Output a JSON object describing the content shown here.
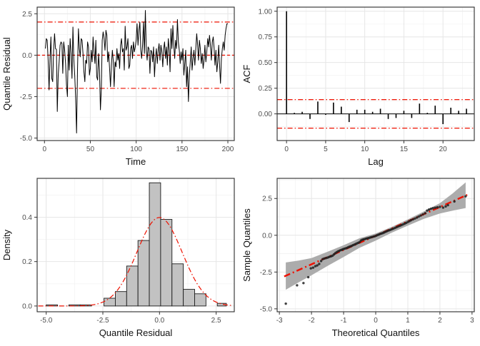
{
  "colors": {
    "accent_red": "#EE1100",
    "series": "#000000",
    "grid_major": "#E6E6E6",
    "grid_minor": "#F3F3F3",
    "panel_border": "#2B2B2B",
    "hist_fill": "#C2C2C2",
    "band_fill": "#ACACAC",
    "point": "#1F1F1F",
    "tick_text": "#4D4D4D",
    "title_text": "#111111"
  },
  "chart_data": [
    {
      "type": "line",
      "variant": "time-series",
      "title": "",
      "xlabel": "Time",
      "ylabel": "Quantile Residual",
      "xlim": [
        -8,
        207
      ],
      "ylim": [
        -5.15,
        2.9
      ],
      "xticks": [
        0,
        50,
        100,
        150,
        200
      ],
      "xtick_labels": [
        "0",
        "50",
        "100",
        "150",
        "200"
      ],
      "yticks": [
        -5.0,
        -2.5,
        0.0,
        2.5
      ],
      "ytick_labels": [
        "-5.0",
        "-2.5",
        "0.0",
        "2.5"
      ],
      "x_minor": [
        25,
        75,
        125,
        175
      ],
      "y_minor": [
        -3.75,
        -1.25,
        1.25
      ],
      "reference_lines": [
        {
          "y": 2,
          "style": "dashdot"
        },
        {
          "y": 0,
          "style": "dashed"
        },
        {
          "y": -2,
          "style": "dashdot"
        }
      ],
      "x_start": 1,
      "values": [
        0.4,
        1.0,
        0.9,
        -0.3,
        -2.1,
        -0.2,
        1.1,
        -1.4,
        -1.6,
        0.3,
        1.3,
        0.4,
        0.35,
        -3.4,
        -1.2,
        -0.4,
        0.6,
        0.8,
        0.7,
        -1.1,
        0.8,
        0.3,
        -0.5,
        -1.8,
        -2.5,
        0.6,
        -0.9,
        1.0,
        0.1,
        -1.4,
        1.7,
        -0.2,
        -1.2,
        -2.6,
        -4.7,
        -0.9,
        1.6,
        0.4,
        -0.1,
        1.0,
        0.9,
        0.1,
        -1.0,
        -1.6,
        -0.3,
        -0.5,
        0.8,
        0.5,
        -1.2,
        -0.8,
        0.3,
        -0.4,
        1.1,
        0.2,
        -0.5,
        0.9,
        -1.3,
        -1.5,
        0.1,
        -0.9,
        -3.3,
        -2.0,
        0.9,
        1.4,
        1.0,
        0.3,
        1.5,
        1.2,
        -0.4,
        0.2,
        -0.8,
        -1.9,
        -0.6,
        0.3,
        -0.3,
        -1.9,
        -0.4,
        -0.7,
        0.4,
        -0.3,
        0.1,
        -0.8,
        0.6,
        1.0,
        0.2,
        0.4,
        -0.9,
        1.75,
        0.3,
        0.5,
        1.0,
        -0.8,
        -0.6,
        0.4,
        0.6,
        -0.2,
        0.8,
        0.2,
        0.5,
        0.9,
        1.9,
        0.6,
        1.5,
        2.0,
        0.3,
        -0.2,
        0.6,
        2.0,
        0.1,
        2.7,
        0.3,
        -0.3,
        0.5,
        0.4,
        -1.1,
        0.3,
        0.2,
        -0.4,
        0.5,
        -1.3,
        -0.2,
        0.4,
        -0.5,
        0.3,
        0.7,
        -0.3,
        0.6,
        0.2,
        -0.7,
        0.4,
        0.8,
        -0.2,
        0.5,
        -0.6,
        1.0,
        0.3,
        -1.0,
        1.6,
        0.4,
        1.8,
        0.6,
        -0.2,
        0.9,
        0.4,
        2.15,
        0.8,
        0.3,
        -0.5,
        0.2,
        -0.3,
        0.4,
        -1.2,
        -0.5,
        0.3,
        -1.9,
        -0.7,
        -2.8,
        -1.2,
        -0.4,
        0.5,
        -0.9,
        -0.2,
        0.3,
        -0.6,
        0.4,
        1.3,
        0.6,
        -0.3,
        0.9,
        0.4,
        -0.5,
        0.1,
        -0.8,
        -0.3,
        0.6,
        -0.4,
        0.2,
        1.0,
        0.5,
        1.2,
        0.6,
        -0.3,
        0.8,
        1.1,
        0.4,
        -0.6,
        0.3,
        -1.0,
        -0.4,
        0.6,
        -0.7,
        -1.7,
        -0.2,
        0.4,
        0.8,
        0.3,
        1.2,
        1.6,
        1.9,
        1.9
      ]
    },
    {
      "type": "bar",
      "variant": "acf",
      "title": "",
      "xlabel": "Lag",
      "ylabel": "ACF",
      "xlim": [
        -1.2,
        24
      ],
      "ylim": [
        -0.26,
        1.04
      ],
      "xticks": [
        0,
        5,
        10,
        15,
        20
      ],
      "xtick_labels": [
        "0",
        "5",
        "10",
        "15",
        "20"
      ],
      "yticks": [
        0.0,
        0.25,
        0.5,
        0.75,
        1.0
      ],
      "ytick_labels": [
        "0.00",
        "0.25",
        "0.50",
        "0.75",
        "1.00"
      ],
      "x_minor": [
        2.5,
        7.5,
        12.5,
        17.5,
        22.5
      ],
      "y_minor": [
        -0.125,
        0.125,
        0.375,
        0.625,
        0.875
      ],
      "conf_level": 0.139,
      "lag_start": 0,
      "acf_values": [
        1.0,
        0.01,
        0.02,
        -0.05,
        0.12,
        -0.01,
        0.11,
        0.07,
        -0.08,
        0.04,
        0.04,
        0.02,
        0.05,
        -0.05,
        -0.04,
        0.03,
        -0.04,
        0.1,
        0.01,
        0.08,
        -0.1,
        0.06,
        0.03,
        0.05
      ]
    },
    {
      "type": "bar",
      "variant": "histogram",
      "title": "",
      "xlabel": "Quantile Residual",
      "ylabel": "Density",
      "xlim": [
        -5.4,
        3.3
      ],
      "ylim": [
        -0.026,
        0.575
      ],
      "xticks": [
        -5.0,
        -2.5,
        0.0,
        2.5
      ],
      "xtick_labels": [
        "-5.0",
        "-2.5",
        "0.0",
        "2.5"
      ],
      "yticks": [
        0.0,
        0.2,
        0.4
      ],
      "ytick_labels": [
        "0.0",
        "0.2",
        "0.4"
      ],
      "x_minor": [
        -3.75,
        -1.25,
        1.25
      ],
      "y_minor": [
        0.1,
        0.3,
        0.5
      ],
      "bins": [
        [
          -5.0,
          -4.5,
          0.005
        ],
        [
          -4.0,
          -3.5,
          0.005
        ],
        [
          -3.5,
          -3.0,
          0.005
        ],
        [
          -2.45,
          -1.95,
          0.035
        ],
        [
          -1.95,
          -1.45,
          0.065
        ],
        [
          -1.45,
          -0.95,
          0.18
        ],
        [
          -0.95,
          -0.45,
          0.295
        ],
        [
          -0.45,
          0.05,
          0.555
        ],
        [
          0.05,
          0.55,
          0.39
        ],
        [
          0.55,
          1.05,
          0.19
        ],
        [
          1.05,
          1.55,
          0.075
        ],
        [
          1.55,
          2.05,
          0.055
        ],
        [
          2.55,
          2.95,
          0.012
        ]
      ],
      "normal_curve": {
        "mean": 0,
        "sd": 1,
        "peak": 0.3989
      }
    },
    {
      "type": "scatter",
      "variant": "qq",
      "title": "",
      "xlabel": "Theoretical Quantiles",
      "ylabel": "Sample Quantiles",
      "xlim": [
        -3.07,
        3.07
      ],
      "ylim": [
        -5.2,
        3.87
      ],
      "xticks": [
        -3,
        -2,
        -1,
        0,
        1,
        2,
        3
      ],
      "xtick_labels": [
        "-3",
        "-2",
        "-1",
        "0",
        "1",
        "2",
        "3"
      ],
      "yticks": [
        -5.0,
        -2.5,
        0.0,
        2.5
      ],
      "ytick_labels": [
        "-5.0",
        "-2.5",
        "0.0",
        "2.5"
      ],
      "x_minor": [
        -2.5,
        -1.5,
        -0.5,
        0.5,
        1.5,
        2.5
      ],
      "y_minor": [
        -3.75,
        -1.25,
        1.25,
        3.75
      ],
      "band": {
        "x": [
          -2.8,
          -2.4,
          -2.0,
          -1.5,
          -1.0,
          -0.5,
          0.0,
          0.5,
          1.0,
          1.5,
          2.0,
          2.4,
          2.8
        ],
        "upper": [
          -1.85,
          -1.72,
          -1.55,
          -1.12,
          -0.68,
          -0.2,
          0.12,
          0.57,
          1.08,
          1.62,
          2.18,
          2.85,
          3.6
        ],
        "lower": [
          -3.7,
          -3.2,
          -2.72,
          -2.08,
          -1.48,
          -0.85,
          -0.36,
          0.18,
          0.66,
          1.12,
          1.48,
          1.68,
          1.85
        ]
      },
      "ref_line": {
        "x1": -2.85,
        "y1": -2.8,
        "x2": 2.85,
        "y2": 2.75
      },
      "points": [
        [
          -2.8,
          -4.65
        ],
        [
          -2.45,
          -3.4
        ],
        [
          -2.25,
          -3.25
        ],
        [
          -2.1,
          -2.85
        ],
        [
          -2.02,
          -2.25
        ],
        [
          -1.95,
          -2.2
        ],
        [
          -1.88,
          -2.1
        ],
        [
          -1.82,
          -2.05
        ],
        [
          -1.76,
          -1.95
        ],
        [
          -1.7,
          -1.75
        ],
        [
          -1.65,
          -1.62
        ],
        [
          -1.6,
          -1.58
        ],
        [
          -1.55,
          -1.55
        ],
        [
          -1.5,
          -1.52
        ],
        [
          -1.46,
          -1.48
        ],
        [
          -1.42,
          -1.45
        ],
        [
          -1.38,
          -1.42
        ],
        [
          -1.34,
          -1.38
        ],
        [
          -1.3,
          -1.3
        ],
        [
          -1.26,
          -1.22
        ],
        [
          -1.22,
          -1.16
        ],
        [
          -1.18,
          -1.1
        ],
        [
          -1.14,
          -1.06
        ],
        [
          -1.1,
          -1.02
        ],
        [
          -1.06,
          -0.99
        ],
        [
          -1.02,
          -0.95
        ],
        [
          -0.98,
          -0.92
        ],
        [
          -0.94,
          -0.89
        ],
        [
          -0.9,
          -0.86
        ],
        [
          -0.86,
          -0.82
        ],
        [
          -0.82,
          -0.78
        ],
        [
          -0.78,
          -0.75
        ],
        [
          -0.74,
          -0.71
        ],
        [
          -0.7,
          -0.67
        ],
        [
          -0.66,
          -0.63
        ],
        [
          -0.62,
          -0.59
        ],
        [
          -0.58,
          -0.55
        ],
        [
          -0.54,
          -0.51
        ],
        [
          -0.5,
          -0.46
        ],
        [
          -0.46,
          -0.36
        ],
        [
          -0.42,
          -0.31
        ],
        [
          -0.38,
          -0.28
        ],
        [
          -0.34,
          -0.26
        ],
        [
          -0.3,
          -0.23
        ],
        [
          -0.26,
          -0.21
        ],
        [
          -0.22,
          -0.19
        ],
        [
          -0.18,
          -0.16
        ],
        [
          -0.14,
          -0.13
        ],
        [
          -0.1,
          -0.11
        ],
        [
          -0.06,
          -0.08
        ],
        [
          -0.02,
          -0.06
        ],
        [
          0.02,
          -0.02
        ],
        [
          0.06,
          0.02
        ],
        [
          0.1,
          0.05
        ],
        [
          0.14,
          0.09
        ],
        [
          0.18,
          0.12
        ],
        [
          0.22,
          0.15
        ],
        [
          0.26,
          0.19
        ],
        [
          0.3,
          0.23
        ],
        [
          0.34,
          0.27
        ],
        [
          0.38,
          0.31
        ],
        [
          0.42,
          0.34
        ],
        [
          0.46,
          0.37
        ],
        [
          0.5,
          0.41
        ],
        [
          0.55,
          0.45
        ],
        [
          0.6,
          0.5
        ],
        [
          0.65,
          0.55
        ],
        [
          0.7,
          0.6
        ],
        [
          0.75,
          0.64
        ],
        [
          0.8,
          0.69
        ],
        [
          0.85,
          0.74
        ],
        [
          0.9,
          0.79
        ],
        [
          0.95,
          0.84
        ],
        [
          1.0,
          0.9
        ],
        [
          1.05,
          0.96
        ],
        [
          1.1,
          1.02
        ],
        [
          1.16,
          1.08
        ],
        [
          1.22,
          1.14
        ],
        [
          1.28,
          1.2
        ],
        [
          1.34,
          1.27
        ],
        [
          1.4,
          1.34
        ],
        [
          1.47,
          1.42
        ],
        [
          1.54,
          1.5
        ],
        [
          1.6,
          1.68
        ],
        [
          1.66,
          1.75
        ],
        [
          1.72,
          1.8
        ],
        [
          1.78,
          1.84
        ],
        [
          1.85,
          1.87
        ],
        [
          1.92,
          1.9
        ],
        [
          2.0,
          1.93
        ],
        [
          2.1,
          1.88
        ],
        [
          2.18,
          1.96
        ],
        [
          2.25,
          2.05
        ],
        [
          2.45,
          2.3
        ],
        [
          2.8,
          2.65
        ]
      ]
    }
  ]
}
